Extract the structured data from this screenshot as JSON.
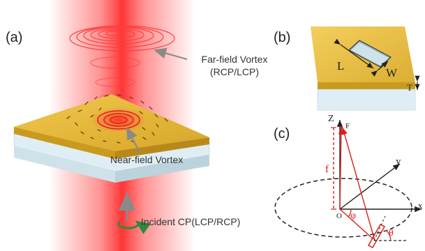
{
  "panels": {
    "a": {
      "label": "(a)",
      "far_field_line1": "Far-field Vortex",
      "far_field_line2": "(RCP/LCP)",
      "near_field": "Near-field Vortex",
      "incident": "Incident CP(LCP/RCP)"
    },
    "b": {
      "label": "(b)",
      "length": "L",
      "width": "W",
      "thickness": "T"
    },
    "c": {
      "label": "(c)",
      "z_axis": "Z",
      "y_axis": "y",
      "x_axis": "x",
      "origin": "O",
      "focus": "F",
      "focal_length": "f",
      "azimuth": "φ",
      "orientation": "θ"
    }
  },
  "colors": {
    "gold_top": "#e9bd3c",
    "gold_side": "#c99a1e",
    "substrate": "#dfeef5",
    "beam": "#ff2a2a",
    "vector_red": "#d9201c",
    "axis": "#222222",
    "arrow_gray": "#8a8a8a",
    "rotation_green": "#2f8a3c"
  },
  "icons": {
    "incident_rotation": "circular-arrow-icon",
    "incident_arrow": "arrow-up-icon"
  }
}
